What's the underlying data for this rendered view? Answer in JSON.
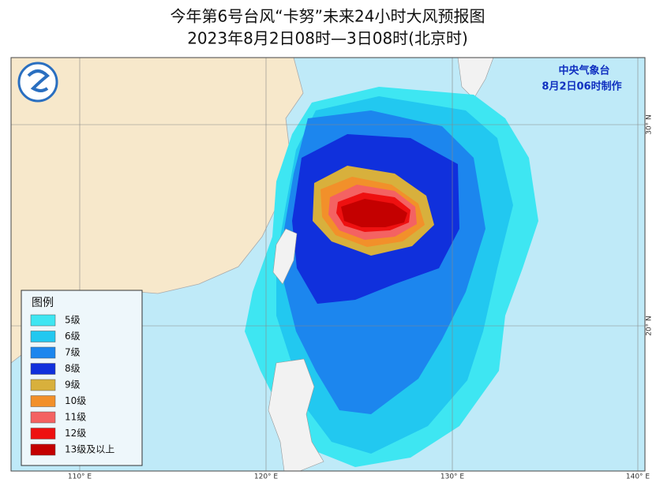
{
  "header": {
    "title": "今年第6号台风“卡努”未来24小时大风预报图",
    "subtitle": "2023年8月2日08时—3日08时(北京时)"
  },
  "agency": {
    "name": "中央气象台",
    "issued": "8月2日06时制作"
  },
  "legend": {
    "title": "图例",
    "items": [
      {
        "label": "5级",
        "color": "#3ee6f2"
      },
      {
        "label": "6级",
        "color": "#22c8f0"
      },
      {
        "label": "7级",
        "color": "#1c86ee"
      },
      {
        "label": "8级",
        "color": "#1030dc"
      },
      {
        "label": "9级",
        "color": "#d8b03c"
      },
      {
        "label": "10级",
        "color": "#f2902a"
      },
      {
        "label": "11级",
        "color": "#f46262"
      },
      {
        "label": "12级",
        "color": "#ee1010"
      },
      {
        "label": "13级及以上",
        "color": "#c40000"
      }
    ]
  },
  "axes": {
    "longitudes": [
      "110° E",
      "120° E",
      "130° E",
      "140° E"
    ],
    "latitudes": [
      "30° N",
      "20° N"
    ]
  }
}
